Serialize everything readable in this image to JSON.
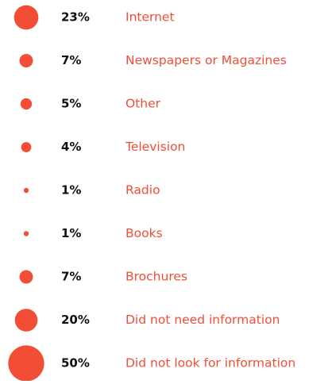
{
  "chart_data": {
    "type": "bubble",
    "categories": [
      "Internet",
      "Newspapers or Magazines",
      "Other",
      "Television",
      "Radio",
      "Books",
      "Brochures",
      "Did not need information",
      "Did not look for information"
    ],
    "values": [
      23,
      7,
      5,
      4,
      1,
      1,
      7,
      20,
      50
    ],
    "value_labels": [
      "23%",
      "7%",
      "5%",
      "4%",
      "1%",
      "1%",
      "7%",
      "20%",
      "50%"
    ],
    "color": "#f24e36"
  }
}
